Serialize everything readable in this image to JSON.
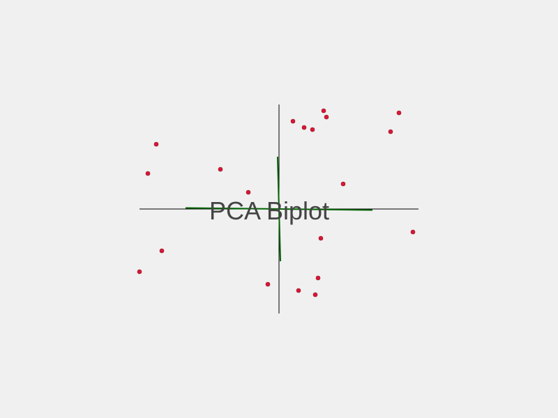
{
  "chart_data": {
    "type": "scatter",
    "title": "PCA Biplot",
    "xlabel": "",
    "ylabel": "",
    "xlim": [
      -5,
      5
    ],
    "ylim": [
      -5,
      5
    ],
    "grid": false,
    "legend": "none",
    "colors": {
      "points": "#dc143c",
      "point_outline": "#8b1a1a",
      "vectors": "#006400",
      "axes": "#000000",
      "title": "#444444",
      "background": "#f0f0f0"
    },
    "points": [
      {
        "x": -4.4,
        "y": 3.1
      },
      {
        "x": -4.7,
        "y": 1.7
      },
      {
        "x": -2.1,
        "y": 1.9
      },
      {
        "x": -1.1,
        "y": 0.8
      },
      {
        "x": -4.2,
        "y": -2.0
      },
      {
        "x": -5.0,
        "y": -3.0
      },
      {
        "x": -0.4,
        "y": -3.6
      },
      {
        "x": 0.5,
        "y": 4.2
      },
      {
        "x": 0.9,
        "y": 3.9
      },
      {
        "x": 1.2,
        "y": 3.8
      },
      {
        "x": 1.6,
        "y": 4.7
      },
      {
        "x": 1.7,
        "y": 4.4
      },
      {
        "x": 2.3,
        "y": 1.2
      },
      {
        "x": 4.0,
        "y": 3.7
      },
      {
        "x": 4.3,
        "y": 4.6
      },
      {
        "x": 4.8,
        "y": -1.1
      },
      {
        "x": 1.5,
        "y": -1.4
      },
      {
        "x": 1.4,
        "y": -3.3
      },
      {
        "x": 0.7,
        "y": -3.9
      },
      {
        "x": 1.3,
        "y": -4.1
      }
    ],
    "loadings": [
      {
        "x": 3.35,
        "y": -0.05
      },
      {
        "x": -3.35,
        "y": 0.05
      },
      {
        "x": -0.05,
        "y": 2.5
      },
      {
        "x": 0.05,
        "y": -2.5
      }
    ]
  }
}
